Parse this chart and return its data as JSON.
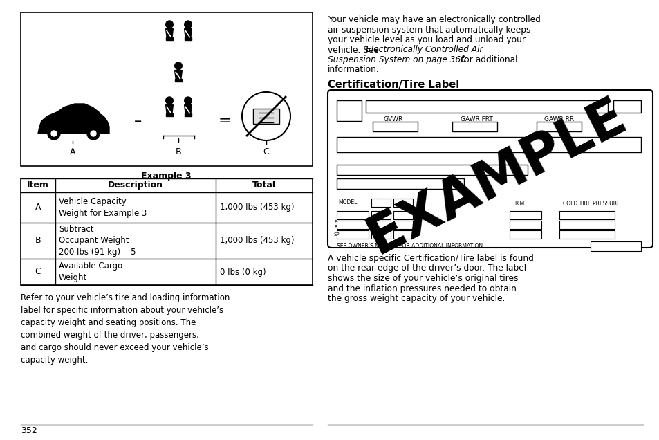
{
  "page_number": "352",
  "bg_color": "#ffffff",
  "left_panel": {
    "example_caption": "Example 3",
    "table_title_row": [
      "Item",
      "Description",
      "Total"
    ],
    "table_rows": [
      [
        "A",
        "Vehicle Capacity\nWeight for Example 3",
        "1,000 lbs (453 kg)"
      ],
      [
        "B",
        "Subtract\nOccupant Weight\n200 lbs (91 kg)    5",
        "1,000 lbs (453 kg)"
      ],
      [
        "C",
        "Available Cargo\nWeight",
        "0 lbs (0 kg)"
      ]
    ],
    "paragraph": "Refer to your vehicle’s tire and loading information\nlabel for specific information about your vehicle’s\ncapacity weight and seating positions. The\ncombined weight of the driver, passengers,\nand cargo should never exceed your vehicle’s\ncapacity weight."
  },
  "right_panel": {
    "para1_normal1": "Your vehicle may have an electronically controlled",
    "para1_normal2": "air suspension system that automatically keeps",
    "para1_normal3": "your vehicle level as you load and unload your",
    "para1_normal4": "vehicle. See ",
    "para1_italic1": "Electronically Controlled Air",
    "para1_italic2": "Suspension System on page 360",
    "para1_normal5": " for additional",
    "para1_normal6": "information.",
    "section_heading": "Certification/Tire Label",
    "para2": "A vehicle specific Certification/Tire label is found\non the rear edge of the driver’s door. The label\nshows the size of your vehicle’s original tires\nand the inflation pressures needed to obtain\nthe gross weight capacity of your vehicle."
  }
}
